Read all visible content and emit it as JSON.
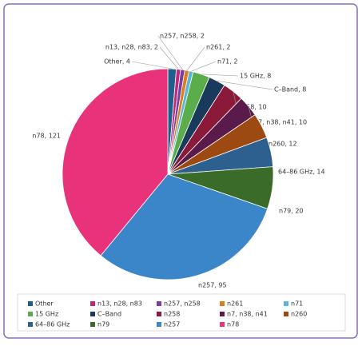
{
  "chart_data": {
    "type": "pie",
    "categories": [
      "Other",
      "n13, n28, n83",
      "n257, n258",
      "n261",
      "n71",
      "15 GHz",
      "C–Band",
      "n258",
      "n7, n38, n41",
      "n260",
      "64–86 GHz",
      "n79",
      "n257",
      "n78"
    ],
    "values": [
      4,
      2,
      2,
      2,
      2,
      8,
      8,
      10,
      10,
      12,
      14,
      20,
      95,
      121
    ],
    "value_labels": [
      "Other, 4",
      "n13, n28, n83, 2",
      "n257, n258, 2",
      "n261, 2",
      "n71, 2",
      "15 GHz, 8",
      "C–Band, 8",
      "n258, 10",
      "n7, n38, n41, 10",
      "n260, 12",
      "64–86 GHz, 14",
      "n79, 20",
      "n257, 95",
      "n78, 121"
    ],
    "colors": [
      "#1f5f8b",
      "#c0267a",
      "#7b3fa0",
      "#e07b1a",
      "#5bb5d8",
      "#5aad4a",
      "#1a3a5c",
      "#8b1a3a",
      "#5a1a4a",
      "#9c4a12",
      "#2d5f8f",
      "#3a6b28",
      "#3a86c8",
      "#e8327a"
    ],
    "legend": "bottom"
  }
}
